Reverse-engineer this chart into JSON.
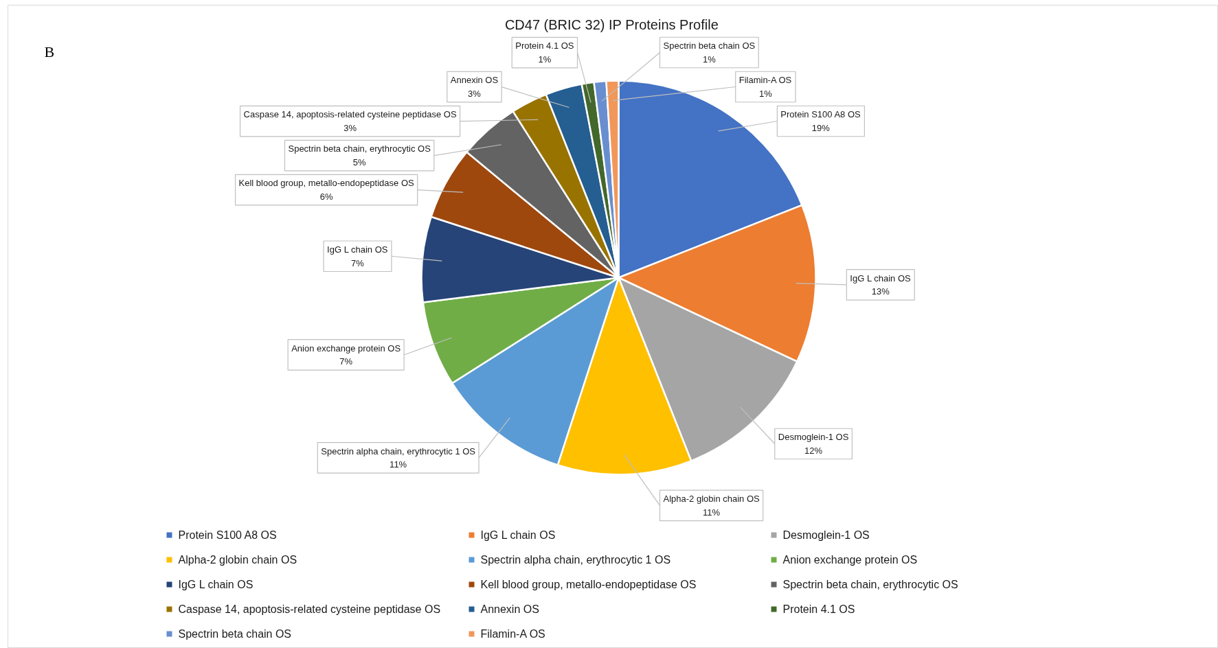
{
  "chart_data": {
    "type": "pie",
    "title": "CD47 (BRIC 32) IP Proteins Profile",
    "annotations": [
      "B"
    ],
    "categories": [
      "Protein S100 A8 OS",
      "IgG L chain OS",
      "Desmoglein-1 OS",
      "Alpha-2 globin chain OS",
      "Spectrin alpha chain, erythrocytic 1 OS",
      "Anion exchange protein OS",
      "IgG L chain OS",
      "Kell blood group, metallo-endopeptidase OS",
      "Spectrin beta chain, erythrocytic OS",
      "Caspase 14, apoptosis-related cysteine peptidase OS",
      "Annexin OS",
      "Protein 4.1 OS",
      "Spectrin beta chain OS",
      "Filamin-A OS"
    ],
    "values": [
      19,
      13,
      12,
      11,
      11,
      7,
      7,
      6,
      5,
      3,
      3,
      1,
      1,
      1
    ],
    "value_labels": [
      "19%",
      "13%",
      "12%",
      "11%",
      "11%",
      "7%",
      "7%",
      "6%",
      "5%",
      "3%",
      "3%",
      "1%",
      "1%",
      "1%"
    ],
    "colors": [
      "#4472c4",
      "#ed7d31",
      "#a5a5a5",
      "#ffc000",
      "#5b9bd5",
      "#70ad47",
      "#264478",
      "#9e480e",
      "#636363",
      "#997300",
      "#255e91",
      "#43682b",
      "#698ed0",
      "#f1975a"
    ],
    "legend": "bottom"
  }
}
